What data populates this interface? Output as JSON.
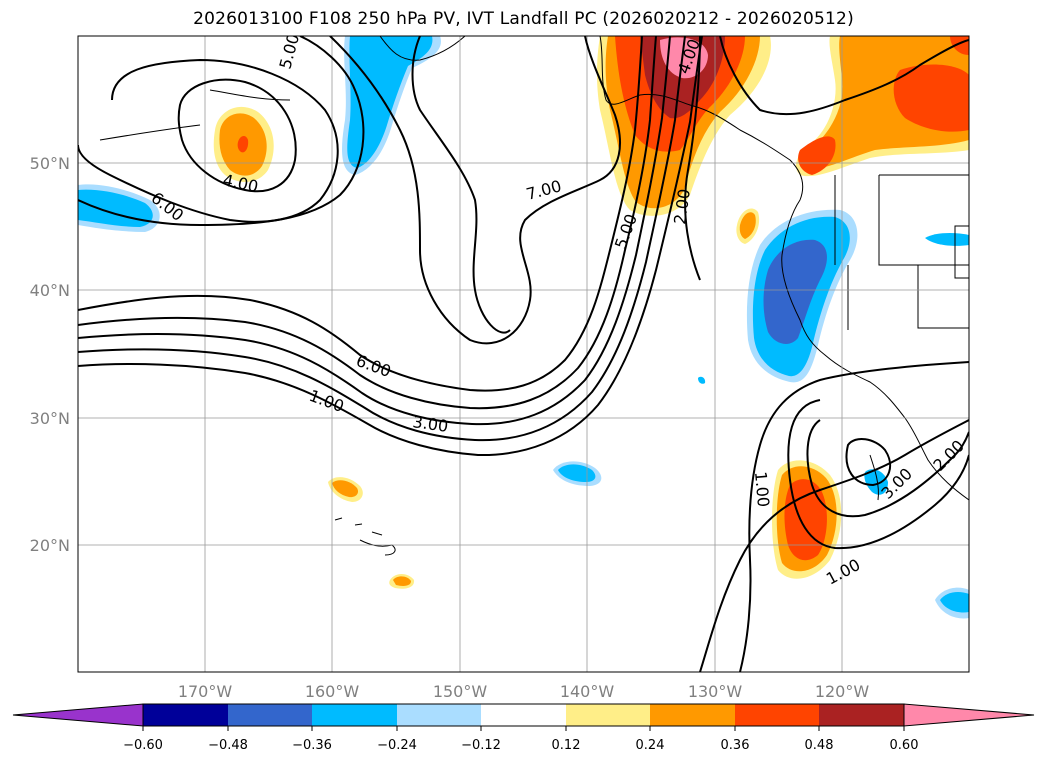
{
  "title": "2026013100 F108 250 hPa PV, IVT Landfall PC (2026020212 - 2026020512)",
  "longitude_labels": [
    "170°W",
    "160°W",
    "150°W",
    "140°W",
    "130°W",
    "120°W"
  ],
  "latitude_labels": [
    "50°N",
    "40°N",
    "30°N",
    "20°N"
  ],
  "contour_labels": [
    "6.00",
    "4.00",
    "5.00",
    "7.00",
    "5.00",
    "2.00",
    "6.00",
    "1.00",
    "3.00",
    "1.00",
    "1.00",
    "3.00",
    "2.00",
    "4.00"
  ],
  "colorbar": {
    "ticks": [
      "−0.60",
      "−0.48",
      "−0.36",
      "−0.24",
      "−0.12",
      "0.12",
      "0.24",
      "0.36",
      "0.48",
      "0.60"
    ],
    "colors": [
      "#9933cc",
      "#000099",
      "#3366cc",
      "#00bbff",
      "#aaddff",
      "#ffffff",
      "#ffee88",
      "#ff9900",
      "#ff4400",
      "#aa2222",
      "#ff88aa"
    ]
  }
}
